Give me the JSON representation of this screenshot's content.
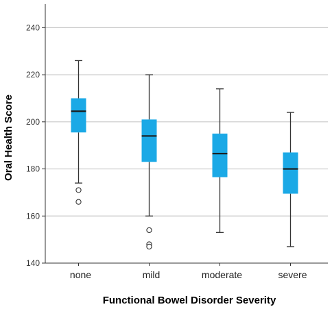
{
  "chart_data": {
    "type": "boxplot",
    "xlabel": "Functional Bowel Disorder Severity",
    "ylabel": "Oral Health Score",
    "ylim": [
      140,
      250
    ],
    "yticks": [
      140,
      160,
      180,
      200,
      220,
      240
    ],
    "grid": "horizontal",
    "box_color": "#1BA9E6",
    "categories": [
      "none",
      "mild",
      "moderate",
      "severe"
    ],
    "boxes": [
      {
        "category": "none",
        "whisker_low": 174,
        "q1": 195.5,
        "median": 204.5,
        "q3": 210,
        "whisker_high": 226,
        "outliers": [
          171,
          166
        ]
      },
      {
        "category": "mild",
        "whisker_low": 160,
        "q1": 183,
        "median": 194,
        "q3": 201,
        "whisker_high": 220,
        "outliers": [
          154,
          148,
          147
        ]
      },
      {
        "category": "moderate",
        "whisker_low": 153,
        "q1": 176.5,
        "median": 186.5,
        "q3": 195,
        "whisker_high": 214,
        "outliers": []
      },
      {
        "category": "severe",
        "whisker_low": 147,
        "q1": 169.5,
        "median": 180,
        "q3": 187,
        "whisker_high": 204,
        "outliers": []
      }
    ]
  }
}
